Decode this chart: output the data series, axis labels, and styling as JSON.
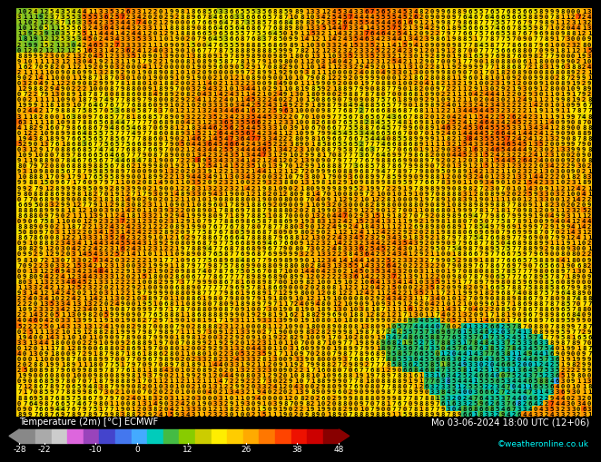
{
  "title_left": "Temperature (2m) [°C] ECMWF",
  "title_right": "Mo 03-06-2024 18:00 UTC (12+06)",
  "credit": "©weatheronline.co.uk",
  "colorbar_ticks": [
    -28,
    -22,
    -10,
    0,
    12,
    26,
    38,
    48
  ],
  "background_color": "#000000",
  "seed": 42,
  "font_size": 5.2,
  "bottom_bar_height": 0.082,
  "legend_colors": [
    "#888888",
    "#aaaaaa",
    "#cccccc",
    "#dd66dd",
    "#9944bb",
    "#4444cc",
    "#4477ee",
    "#44aaff",
    "#00ccbb",
    "#44bb44",
    "#88cc00",
    "#cccc00",
    "#ffee00",
    "#ffcc00",
    "#ffaa00",
    "#ff7700",
    "#ff4400",
    "#ee1100",
    "#cc0000",
    "#880000"
  ],
  "temp_colors": {
    "boundaries": [
      -28,
      -22,
      -16,
      -10,
      -4,
      0,
      6,
      12,
      18,
      24,
      26,
      32,
      38,
      43,
      48
    ],
    "colors": [
      "#888888",
      "#bbbbbb",
      "#dd66dd",
      "#9944bb",
      "#4444cc",
      "#4477ee",
      "#44aaff",
      "#00ccbb",
      "#44bb44",
      "#cccc00",
      "#ffee00",
      "#ffaa00",
      "#ff4400",
      "#cc0000"
    ]
  }
}
